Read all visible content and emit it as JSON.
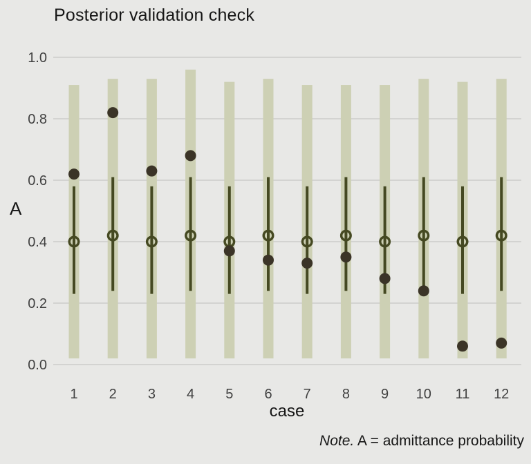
{
  "title": "Posterior validation check",
  "axes": {
    "y_label": "A",
    "x_label": "case",
    "y_ticks": [
      {
        "label": "1.0",
        "value": 1.0
      },
      {
        "label": "0.8",
        "value": 0.8
      },
      {
        "label": "0.6",
        "value": 0.6
      },
      {
        "label": "0.4",
        "value": 0.4
      },
      {
        "label": "0.2",
        "value": 0.2
      },
      {
        "label": "0.0",
        "value": 0.0
      }
    ]
  },
  "note": {
    "italic": "Note.",
    "rest": " A = admittance probability"
  },
  "colors": {
    "background": "#e8e8e6",
    "gridline": "#d3d3d1",
    "outer_interval_bar": "#cdd0b4",
    "inner_interval_line": "#454922",
    "median_circle": "#454922",
    "observed_dot": "#3b3427",
    "tick_text": "#404040",
    "label_text": "#161616"
  },
  "chart_data": {
    "type": "pointrange (posterior predictive intervals with observed dots)",
    "title": "Posterior validation check",
    "xlabel": "case",
    "ylabel": "A",
    "ylim": [
      0.0,
      1.0
    ],
    "grid": true,
    "legend": "none",
    "note": "Note. A = admittance probability",
    "categories": [
      "1",
      "2",
      "3",
      "4",
      "5",
      "6",
      "7",
      "8",
      "9",
      "10",
      "11",
      "12"
    ],
    "series": [
      {
        "name": "outer interval (wide light bar)",
        "low": [
          0.02,
          0.02,
          0.02,
          0.02,
          0.02,
          0.02,
          0.02,
          0.02,
          0.02,
          0.02,
          0.02,
          0.02
        ],
        "high": [
          0.91,
          0.93,
          0.93,
          0.96,
          0.92,
          0.93,
          0.91,
          0.91,
          0.91,
          0.93,
          0.92,
          0.93
        ]
      },
      {
        "name": "inner interval (dark line)",
        "low": [
          0.23,
          0.24,
          0.23,
          0.24,
          0.23,
          0.24,
          0.23,
          0.24,
          0.23,
          0.24,
          0.23,
          0.24
        ],
        "high": [
          0.58,
          0.61,
          0.58,
          0.61,
          0.58,
          0.61,
          0.58,
          0.61,
          0.58,
          0.61,
          0.58,
          0.61
        ]
      },
      {
        "name": "posterior median (open circle)",
        "values": [
          0.4,
          0.42,
          0.4,
          0.42,
          0.4,
          0.42,
          0.4,
          0.42,
          0.4,
          0.42,
          0.4,
          0.42
        ]
      },
      {
        "name": "observed (filled dot)",
        "values": [
          0.62,
          0.82,
          0.63,
          0.68,
          0.37,
          0.34,
          0.33,
          0.35,
          0.28,
          0.24,
          0.06,
          0.07
        ]
      }
    ]
  }
}
